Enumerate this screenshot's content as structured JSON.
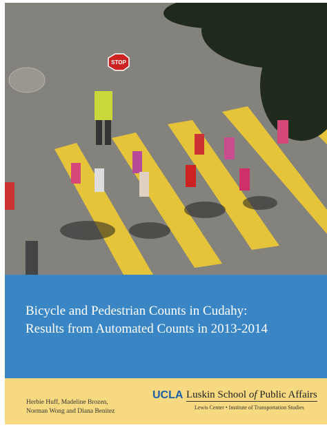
{
  "photo": {
    "sign": "STOP"
  },
  "cover": {
    "title": [
      "Bicycle and Pedestrian Counts in Cudahy:",
      "Results from Automated Counts in 2013-2014"
    ],
    "authors": [
      "Herbie Huff, Madeline Brozen,",
      "Norman Wong and Diana Benitez"
    ],
    "logo": {
      "mark": "UCLA",
      "school": [
        "Luskin School ",
        "of",
        " Public Affairs"
      ],
      "subtitle": "Lewis Center • Institute of Transportation Studies"
    }
  }
}
